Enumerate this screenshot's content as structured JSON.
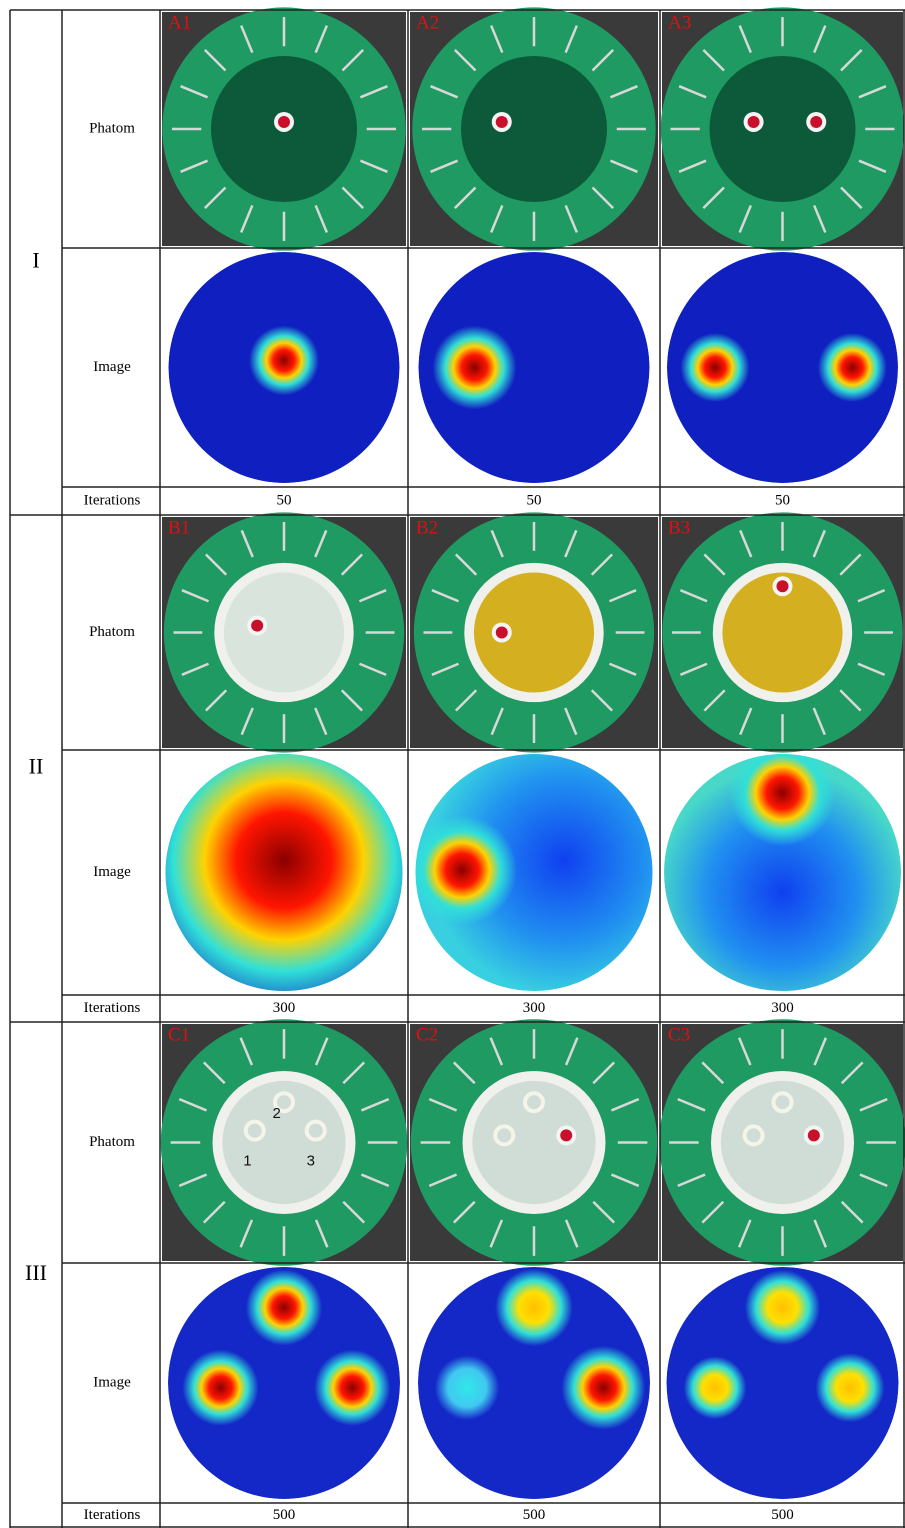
{
  "groups": [
    {
      "label": "I",
      "phantom_label": "Phatom",
      "image_label": "Image",
      "iterations_label": "Iterations",
      "panels": [
        {
          "id": "A1",
          "iterations": 50
        },
        {
          "id": "A2",
          "iterations": 50
        },
        {
          "id": "A3",
          "iterations": 50
        }
      ]
    },
    {
      "label": "II",
      "phantom_label": "Phatom",
      "image_label": "Image",
      "iterations_label": "Iterations",
      "panels": [
        {
          "id": "B1",
          "iterations": 300
        },
        {
          "id": "B2",
          "iterations": 300
        },
        {
          "id": "B3",
          "iterations": 300
        }
      ]
    },
    {
      "label": "III",
      "phantom_label": "Phatom",
      "image_label": "Image",
      "iterations_label": "Iterations",
      "panels": [
        {
          "id": "C1",
          "iterations": 500,
          "markers": [
            "1",
            "2",
            "3"
          ]
        },
        {
          "id": "C2",
          "iterations": 500
        },
        {
          "id": "C3",
          "iterations": 500
        }
      ]
    }
  ]
}
